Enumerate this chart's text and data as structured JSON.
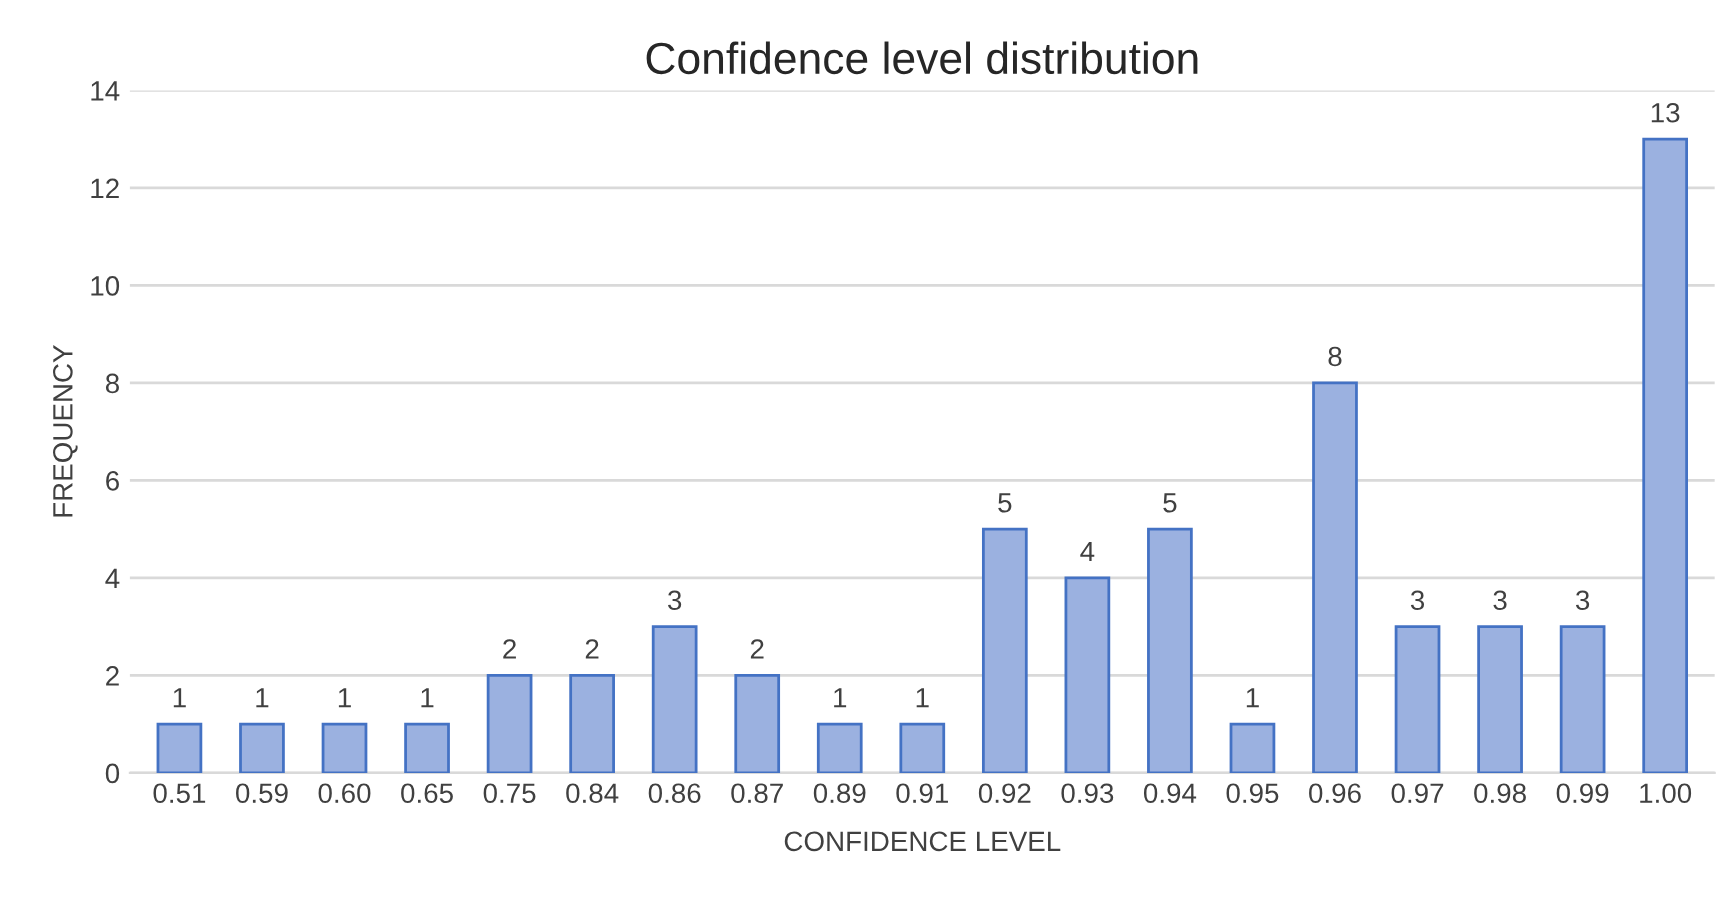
{
  "chart_data": {
    "type": "bar",
    "title": "Confidence level distribution",
    "xlabel": "CONFIDENCE LEVEL",
    "ylabel": "FREQUENCY",
    "categories": [
      "0.51",
      "0.59",
      "0.60",
      "0.65",
      "0.75",
      "0.84",
      "0.86",
      "0.87",
      "0.89",
      "0.91",
      "0.92",
      "0.93",
      "0.94",
      "0.95",
      "0.96",
      "0.97",
      "0.98",
      "0.99",
      "1.00"
    ],
    "values": [
      1,
      1,
      1,
      1,
      2,
      2,
      3,
      2,
      1,
      1,
      5,
      4,
      5,
      1,
      8,
      3,
      3,
      3,
      13
    ],
    "color": "#9bb1e0",
    "ylim": [
      0,
      14
    ],
    "yticks": [
      0,
      2,
      4,
      6,
      8,
      10,
      12,
      14
    ],
    "grid": "y",
    "data_labels": true
  }
}
